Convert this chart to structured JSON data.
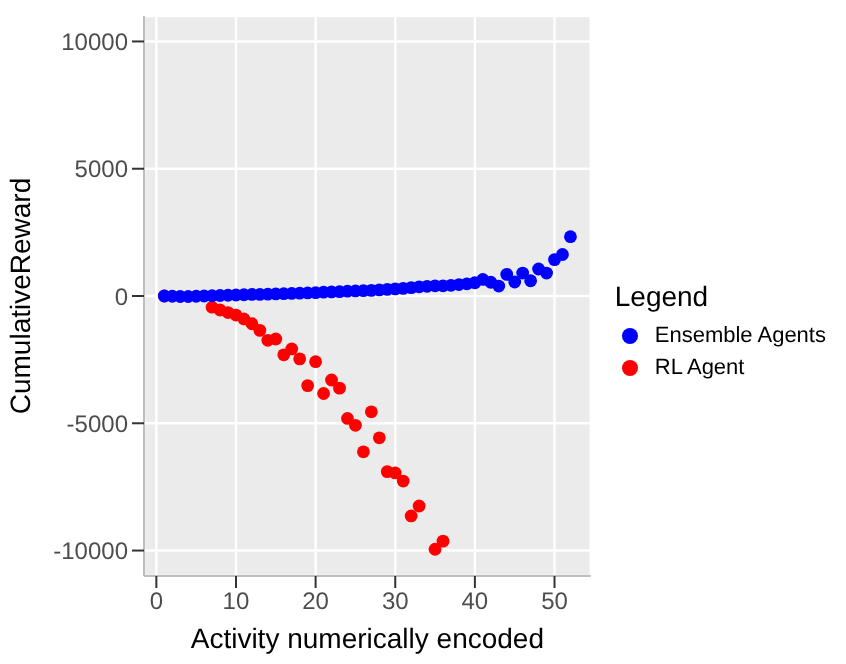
{
  "chart_data": {
    "type": "scatter",
    "xlabel": "Activity numerically encoded",
    "ylabel": "CumulativeReward",
    "legend_title": "Legend",
    "xlim": [
      -1.55,
      54.55
    ],
    "xticks": [
      0,
      10,
      20,
      30,
      40,
      50
    ],
    "ylim": [
      -11000,
      11000
    ],
    "yticks": [
      -10000,
      -5000,
      0,
      5000,
      10000
    ],
    "grid": true,
    "legend": "right",
    "marker": "circle",
    "series": [
      {
        "name": "Ensemble Agents",
        "color": "#0000ff",
        "x": [
          1,
          2,
          3,
          4,
          5,
          6,
          7,
          8,
          9,
          10,
          11,
          12,
          13,
          14,
          15,
          16,
          17,
          18,
          19,
          20,
          21,
          22,
          23,
          24,
          25,
          26,
          27,
          28,
          29,
          30,
          31,
          32,
          33,
          34,
          35,
          36,
          37,
          38,
          39,
          40,
          41,
          42,
          43,
          44,
          45,
          46,
          47,
          48,
          49,
          50,
          51,
          52
        ],
        "values": [
          0,
          -10,
          -20,
          -20,
          -10,
          0,
          10,
          20,
          30,
          40,
          50,
          60,
          60,
          70,
          80,
          90,
          100,
          110,
          120,
          130,
          150,
          160,
          170,
          190,
          200,
          210,
          220,
          240,
          260,
          280,
          300,
          330,
          360,
          380,
          400,
          400,
          420,
          450,
          480,
          520,
          650,
          540,
          390,
          850,
          550,
          900,
          600,
          1060,
          900,
          1430,
          1630,
          2330
        ]
      },
      {
        "name": "RL Agent",
        "color": "#ff0000",
        "x": [
          1,
          2,
          3,
          4,
          5,
          6,
          7,
          8,
          9,
          10,
          11,
          12,
          13,
          14,
          15,
          16,
          17,
          18,
          19,
          20,
          21,
          22,
          23,
          24,
          25,
          26,
          27,
          28,
          29,
          30,
          31,
          32,
          33,
          35,
          36
        ],
        "values": [
          0,
          null,
          null,
          null,
          null,
          null,
          -440,
          -550,
          -650,
          -750,
          -900,
          -1090,
          -1350,
          -1740,
          -1690,
          -2310,
          -2080,
          -2470,
          -3520,
          -2580,
          -3830,
          -3300,
          -3620,
          -4810,
          -5080,
          -6120,
          -4550,
          -5570,
          -6900,
          -6950,
          -7270,
          -8640,
          -8250,
          -9950,
          -9630
        ]
      }
    ]
  }
}
